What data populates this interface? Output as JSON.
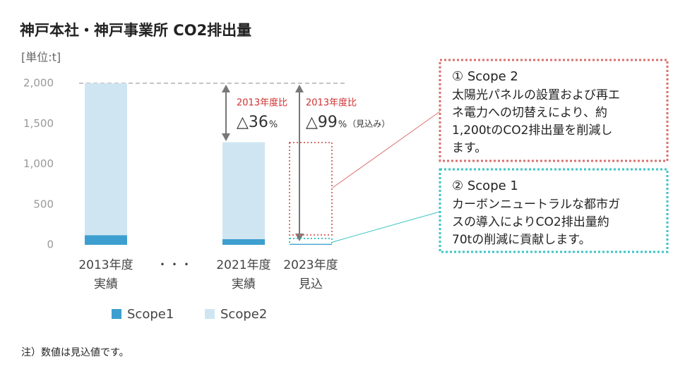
{
  "chart_data": {
    "type": "bar",
    "title": "神戸本社・神戸事業所 CO2排出量",
    "unit_label": "[単位:t]",
    "categories": [
      [
        "2013年度",
        "実績"
      ],
      [
        "・・・"
      ],
      [
        "2021年度",
        "実績"
      ],
      [
        "2023年度",
        "見込"
      ]
    ],
    "series": [
      {
        "name": "Scope1",
        "color": "#3d9fcf",
        "values": [
          120,
          null,
          70,
          10
        ]
      },
      {
        "name": "Scope2",
        "color": "#cfe6f2",
        "values": [
          1880,
          null,
          1200,
          10
        ]
      }
    ],
    "stacked": true,
    "ylim": [
      0,
      2000
    ],
    "yticks": [
      0,
      500,
      {
        "value": 1000,
        "label": "1,000"
      },
      {
        "value": 1500,
        "label": "1,500"
      },
      {
        "value": 2000,
        "label": "2,000"
      }
    ],
    "reference_line": 2000,
    "annotations": [
      {
        "label": "2013年度比",
        "value": "△36",
        "unit": "%"
      },
      {
        "label": "2013年度比",
        "value": "△99",
        "unit": "%",
        "note": "（見込み）"
      }
    ],
    "callouts": [
      {
        "heading": "① Scope 2",
        "lines": [
          "太陽光パネルの設置および再エ",
          "ネ電力への切替えにより、約",
          "1,200tのCO2排出量を削減し",
          "ます。"
        ],
        "color": "#d9706f"
      },
      {
        "heading": "② Scope 1",
        "lines": [
          "カーボンニュートラルな都市ガ",
          "スの導入によりCO2排出量約",
          "70tの削減に貢献します。"
        ],
        "color": "#3cc4c4"
      }
    ],
    "footnote": "注）数値は見込値です。"
  }
}
